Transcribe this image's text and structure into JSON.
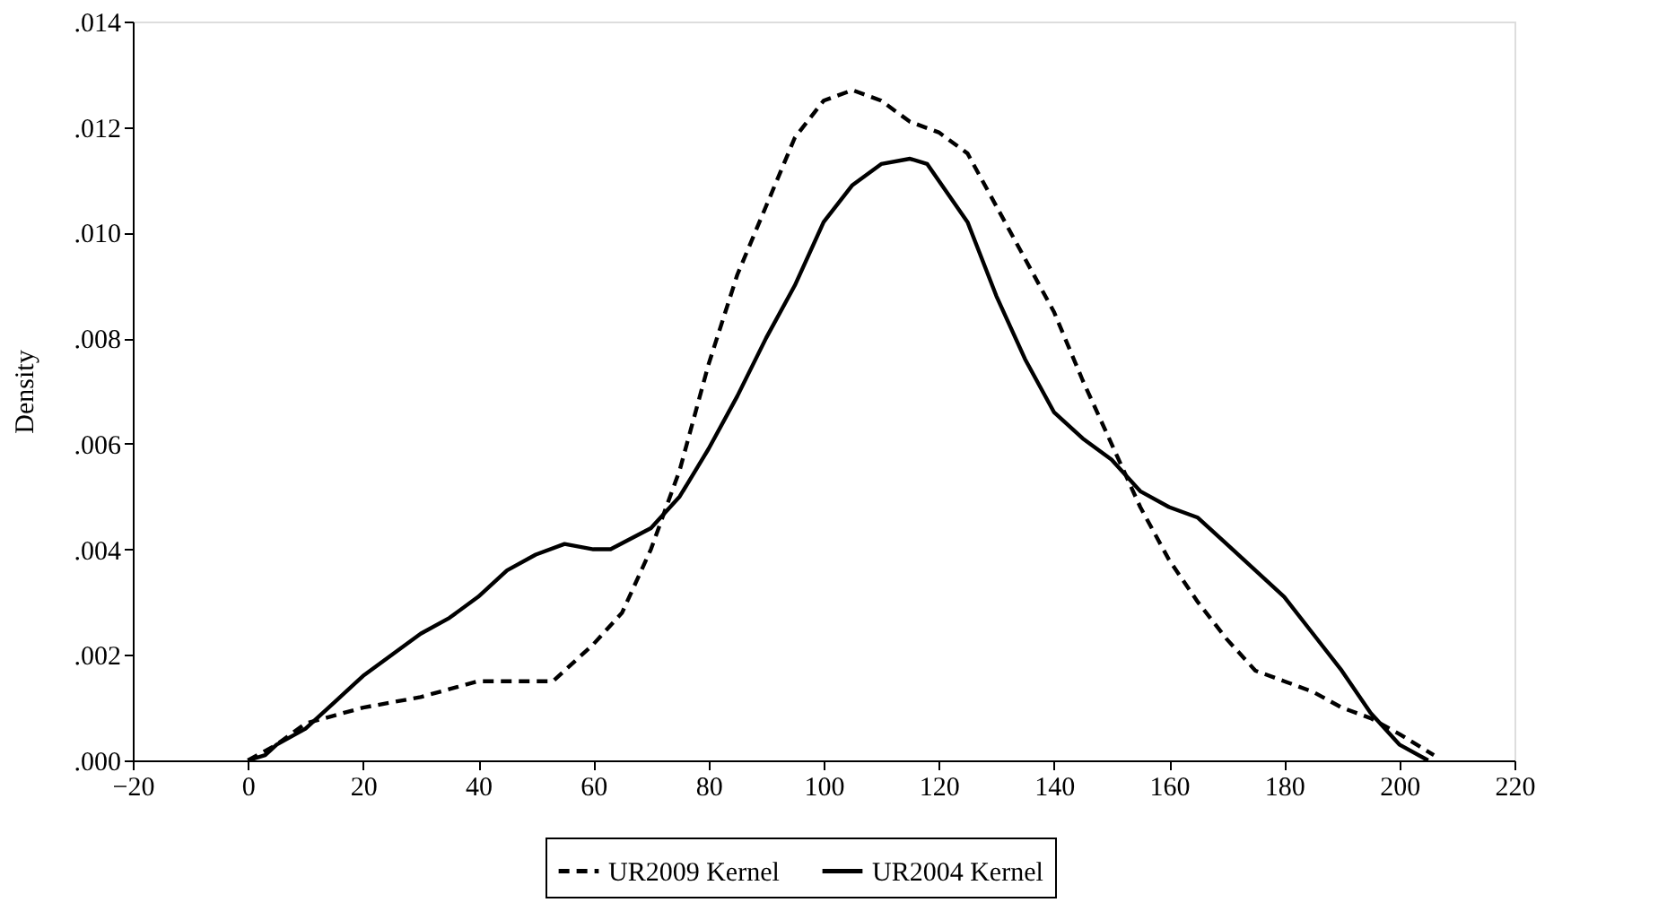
{
  "chart_data": {
    "type": "line",
    "ylabel": "Density",
    "xlim": [
      -20,
      220
    ],
    "xticks": [
      -20,
      0,
      20,
      40,
      60,
      80,
      100,
      120,
      140,
      160,
      180,
      200,
      220
    ],
    "ylim": [
      0,
      0.014
    ],
    "yticks": [
      {
        "value": 0,
        "label": ".000"
      },
      {
        "value": 0.002,
        "label": ".002"
      },
      {
        "value": 0.004,
        "label": ".004"
      },
      {
        "value": 0.006,
        "label": ".006"
      },
      {
        "value": 0.008,
        "label": ".008"
      },
      {
        "value": 0.01,
        "label": ".010"
      },
      {
        "value": 0.012,
        "label": ".012"
      },
      {
        "value": 0.014,
        "label": ".014"
      }
    ],
    "grid": false,
    "legend": "bottom",
    "marker": "none",
    "series": [
      {
        "name": "UR2009 Kernel",
        "color": "#000000",
        "line_style": "dashed",
        "x": [
          0,
          5,
          10,
          20,
          30,
          40,
          53,
          60,
          65,
          70,
          75,
          80,
          85,
          90,
          95,
          100,
          105,
          110,
          115,
          120,
          125,
          130,
          135,
          140,
          145,
          150,
          155,
          160,
          165,
          170,
          175,
          180,
          185,
          190,
          195,
          200,
          206
        ],
        "values": [
          0,
          0.0003,
          0.0007,
          0.001,
          0.0012,
          0.0015,
          0.0015,
          0.0022,
          0.0028,
          0.004,
          0.0055,
          0.0075,
          0.0092,
          0.0105,
          0.0118,
          0.0125,
          0.0127,
          0.0125,
          0.0121,
          0.0119,
          0.0115,
          0.0105,
          0.0095,
          0.0085,
          0.0072,
          0.006,
          0.0048,
          0.0038,
          0.003,
          0.0023,
          0.0017,
          0.0015,
          0.0013,
          0.001,
          0.0008,
          0.0005,
          0.0001
        ]
      },
      {
        "name": "UR2004 Kernel",
        "color": "#000000",
        "line_style": "solid",
        "x": [
          0,
          3,
          5,
          10,
          15,
          20,
          25,
          30,
          35,
          40,
          45,
          50,
          55,
          60,
          63,
          70,
          75,
          80,
          85,
          90,
          95,
          100,
          105,
          110,
          115,
          118,
          125,
          130,
          135,
          140,
          145,
          150,
          155,
          160,
          165,
          170,
          175,
          180,
          185,
          190,
          195,
          200,
          205
        ],
        "values": [
          0,
          0.0001,
          0.0003,
          0.0006,
          0.0011,
          0.0016,
          0.002,
          0.0024,
          0.0027,
          0.0031,
          0.0036,
          0.0039,
          0.0041,
          0.004,
          0.004,
          0.0044,
          0.005,
          0.0059,
          0.0069,
          0.008,
          0.009,
          0.0102,
          0.0109,
          0.0113,
          0.0114,
          0.0113,
          0.0102,
          0.0088,
          0.0076,
          0.0066,
          0.0061,
          0.0057,
          0.0051,
          0.0048,
          0.0046,
          0.0041,
          0.0036,
          0.0031,
          0.0024,
          0.0017,
          0.0009,
          0.0003,
          0
        ]
      }
    ]
  }
}
